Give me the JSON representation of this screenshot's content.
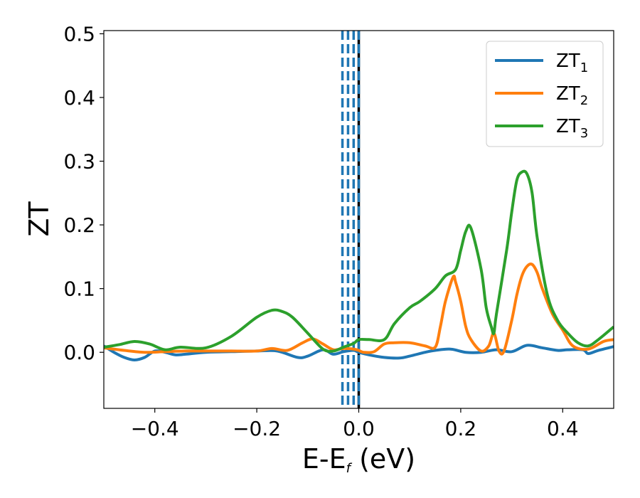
{
  "chart_data": {
    "type": "line",
    "title": "",
    "xlabel": {
      "main": "E-E",
      "sub": "f",
      "tail": " (eV)"
    },
    "ylabel": "ZT",
    "xlim": [
      -0.5,
      0.5
    ],
    "ylim": [
      -0.088,
      0.505
    ],
    "xticks": [
      -0.4,
      -0.2,
      0.0,
      0.2,
      0.4
    ],
    "xtick_labels": [
      "−0.4",
      "−0.2",
      "0.0",
      "0.2",
      "0.4"
    ],
    "yticks": [
      0.0,
      0.1,
      0.2,
      0.3,
      0.4,
      0.5
    ],
    "ytick_labels": [
      "0.0",
      "0.1",
      "0.2",
      "0.3",
      "0.4",
      "0.5"
    ],
    "legend_position": "top-right",
    "vlines": [
      {
        "x": -0.032,
        "color": "#1f77b4",
        "style": "dashed"
      },
      {
        "x": -0.021,
        "color": "#1f77b4",
        "style": "dashed"
      },
      {
        "x": -0.01,
        "color": "#1f77b4",
        "style": "dashed"
      },
      {
        "x": 0.0,
        "color": "#000000",
        "style": "solid"
      },
      {
        "x": 0.0,
        "color": "#1f77b4",
        "style": "dashed"
      }
    ],
    "series": [
      {
        "name": "ZT",
        "name_sub": "1",
        "color": "#1f77b4",
        "x": [
          -0.5,
          -0.48,
          -0.46,
          -0.44,
          -0.42,
          -0.4,
          -0.38,
          -0.36,
          -0.34,
          -0.3,
          -0.25,
          -0.2,
          -0.16,
          -0.12,
          -0.1,
          -0.07,
          -0.05,
          -0.03,
          -0.01,
          0.0,
          0.02,
          0.05,
          0.08,
          0.1,
          0.13,
          0.15,
          0.18,
          0.21,
          0.24,
          0.27,
          0.3,
          0.33,
          0.36,
          0.39,
          0.41,
          0.44,
          0.45,
          0.47,
          0.5
        ],
        "y": [
          0.01,
          0.0,
          -0.008,
          -0.012,
          -0.008,
          0.002,
          0.0,
          -0.004,
          -0.003,
          0.0,
          0.001,
          0.002,
          0.002,
          -0.008,
          -0.006,
          0.004,
          -0.003,
          0.001,
          0.003,
          0.0,
          -0.004,
          -0.008,
          -0.009,
          -0.006,
          0.0,
          0.003,
          0.005,
          0.0,
          0.0,
          0.004,
          0.001,
          0.011,
          0.007,
          0.003,
          0.004,
          0.004,
          -0.002,
          0.003,
          0.009
        ]
      },
      {
        "name": "ZT",
        "name_sub": "2",
        "color": "#ff7f0e",
        "x": [
          -0.5,
          -0.46,
          -0.42,
          -0.38,
          -0.34,
          -0.3,
          -0.25,
          -0.2,
          -0.17,
          -0.14,
          -0.11,
          -0.09,
          -0.07,
          -0.05,
          -0.03,
          -0.01,
          0.0,
          0.01,
          0.03,
          0.05,
          0.07,
          0.1,
          0.13,
          0.15,
          0.16,
          0.17,
          0.185,
          0.19,
          0.2,
          0.21,
          0.22,
          0.24,
          0.255,
          0.265,
          0.275,
          0.285,
          0.3,
          0.31,
          0.32,
          0.33,
          0.34,
          0.35,
          0.36,
          0.38,
          0.4,
          0.42,
          0.45,
          0.48,
          0.5
        ],
        "y": [
          0.007,
          0.003,
          0.0,
          0.001,
          0.002,
          0.002,
          0.002,
          0.002,
          0.006,
          0.003,
          0.015,
          0.021,
          0.013,
          0.004,
          0.006,
          0.005,
          0.003,
          0.0,
          0.001,
          0.013,
          0.015,
          0.015,
          0.01,
          0.008,
          0.04,
          0.08,
          0.118,
          0.11,
          0.08,
          0.04,
          0.02,
          0.002,
          0.01,
          0.03,
          0.002,
          0.002,
          0.05,
          0.09,
          0.12,
          0.135,
          0.138,
          0.125,
          0.1,
          0.06,
          0.035,
          0.01,
          0.005,
          0.017,
          0.02
        ]
      },
      {
        "name": "ZT",
        "name_sub": "3",
        "color": "#2ca02c",
        "x": [
          -0.5,
          -0.47,
          -0.44,
          -0.41,
          -0.38,
          -0.35,
          -0.3,
          -0.25,
          -0.2,
          -0.17,
          -0.15,
          -0.13,
          -0.1,
          -0.07,
          -0.05,
          -0.03,
          -0.01,
          0.0,
          0.02,
          0.05,
          0.07,
          0.1,
          0.12,
          0.15,
          0.17,
          0.19,
          0.2,
          0.21,
          0.22,
          0.24,
          0.25,
          0.26,
          0.265,
          0.27,
          0.29,
          0.3,
          0.31,
          0.32,
          0.33,
          0.34,
          0.35,
          0.37,
          0.39,
          0.41,
          0.43,
          0.45,
          0.47,
          0.5
        ],
        "y": [
          0.008,
          0.012,
          0.017,
          0.013,
          0.004,
          0.008,
          0.007,
          0.025,
          0.055,
          0.066,
          0.064,
          0.055,
          0.03,
          0.005,
          0.002,
          0.008,
          0.014,
          0.02,
          0.02,
          0.02,
          0.045,
          0.07,
          0.08,
          0.1,
          0.12,
          0.13,
          0.16,
          0.19,
          0.195,
          0.13,
          0.07,
          0.04,
          0.03,
          0.06,
          0.16,
          0.22,
          0.27,
          0.283,
          0.28,
          0.25,
          0.18,
          0.09,
          0.05,
          0.03,
          0.015,
          0.01,
          0.02,
          0.04
        ]
      }
    ]
  }
}
